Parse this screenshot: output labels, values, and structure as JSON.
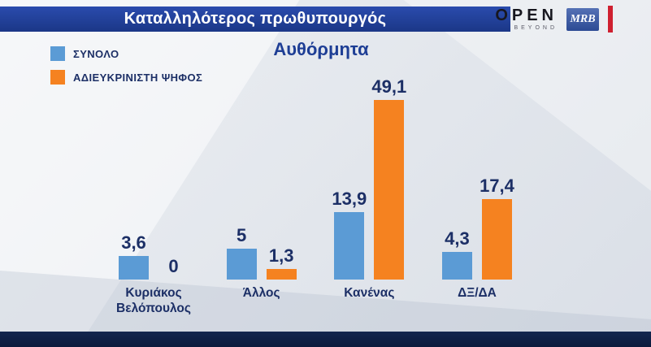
{
  "header": {
    "title": "Καταλληλότερος πρωθυπουργός"
  },
  "logos": {
    "open": "OPEN",
    "open_tagline": "BEYOND",
    "mrb": "MRB"
  },
  "legend": {
    "items": [
      {
        "label": "ΣΥΝΟΛΟ",
        "color": "#5b9bd5"
      },
      {
        "label": "ΑΔΙΕΥΚΡΙΝΙΣΤΗ ΨΗΦΟΣ",
        "color": "#f58220"
      }
    ]
  },
  "chart_data": {
    "type": "bar",
    "title": "Αυθόρμητα",
    "categories": [
      "Κυριάκος Βελόπουλος",
      "Άλλος",
      "Κανένας",
      "ΔΞ/ΔΑ"
    ],
    "series": [
      {
        "name": "ΣΥΝΟΛΟ",
        "color": "#5b9bd5",
        "values": [
          3.6,
          5,
          13.9,
          4.3
        ],
        "value_labels": [
          "3,6",
          "5",
          "13,9",
          "4,3"
        ]
      },
      {
        "name": "ΑΔΙΕΥΚΡΙΝΙΣΤΗ ΨΗΦΟΣ",
        "color": "#f58220",
        "values": [
          0,
          1.3,
          49.1,
          17.4
        ],
        "value_labels": [
          "0",
          "1,3",
          "49,1",
          "17,4"
        ]
      }
    ],
    "ylim": [
      0,
      55
    ],
    "grid": false,
    "legend_position": "top-left",
    "decimal_separator": ","
  },
  "colors": {
    "header_bar": "#1f3e96",
    "text_dark": "#1c2f66",
    "bar_blue": "#5b9bd5",
    "bar_orange": "#f58220",
    "bottom_bar": "#0c1c41",
    "mrb_box": "#33549e",
    "red_stripe": "#cf2030"
  }
}
